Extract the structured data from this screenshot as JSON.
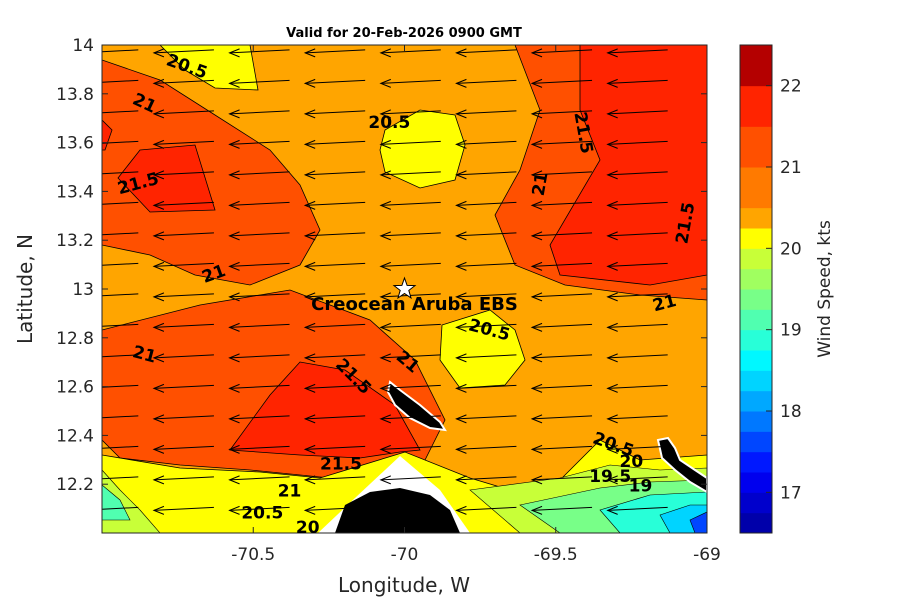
{
  "chart_data": {
    "type": "heatmap",
    "title": "Valid for 20-Feb-2026 0900 GMT",
    "xlabel": "Longitude, W",
    "ylabel": "Latitude, N",
    "xlim": [
      -71.0,
      -69.0
    ],
    "ylim": [
      12.0,
      14.0
    ],
    "x_ticks": [
      "-70.5",
      "-70",
      "-69.5",
      "-69"
    ],
    "x_tick_values": [
      -70.5,
      -70.0,
      -69.5,
      -69.0
    ],
    "y_ticks": [
      "12.2",
      "12.4",
      "12.6",
      "12.8",
      "13",
      "13.2",
      "13.4",
      "13.6",
      "13.8",
      "14"
    ],
    "y_tick_values": [
      12.2,
      12.4,
      12.6,
      12.8,
      13.0,
      13.2,
      13.4,
      13.6,
      13.8,
      14.0
    ],
    "colorbar": {
      "label": "Wind Speed, kts",
      "range": [
        16.5,
        22.5
      ],
      "tick_labels": [
        "17",
        "18",
        "19",
        "20",
        "21",
        "22"
      ],
      "tick_values": [
        17,
        18,
        19,
        20,
        21,
        22
      ],
      "levels": [
        16.5,
        16.75,
        17,
        17.25,
        17.5,
        17.75,
        18,
        18.25,
        18.5,
        18.75,
        19,
        19.25,
        19.5,
        19.75,
        20,
        20.25,
        20.5,
        21,
        21.5,
        22,
        22.5
      ],
      "colors": [
        "#0000aa",
        "#0000cc",
        "#0000ee",
        "#0018ff",
        "#0046ff",
        "#0078ff",
        "#00a8ff",
        "#00d4ff",
        "#00f8ff",
        "#28ffd8",
        "#50ffb0",
        "#78ff88",
        "#a0ff60",
        "#c8ff38",
        "#ffff00",
        "#ffa500",
        "#ff7a00",
        "#ff5000",
        "#ff2400",
        "#b40000"
      ]
    },
    "contour_labels": [
      {
        "text": "20.5",
        "lon": -70.72,
        "lat": 13.91,
        "rotate": 20
      },
      {
        "text": "21",
        "lon": -70.86,
        "lat": 13.76,
        "rotate": 25
      },
      {
        "text": "21.5",
        "lon": -70.88,
        "lat": 13.43,
        "rotate": -15
      },
      {
        "text": "21",
        "lon": -70.63,
        "lat": 13.06,
        "rotate": -20
      },
      {
        "text": "20.5",
        "lon": -70.05,
        "lat": 13.68,
        "rotate": 0
      },
      {
        "text": "21",
        "lon": -69.55,
        "lat": 13.43,
        "rotate": -80
      },
      {
        "text": "21.5",
        "lon": -69.41,
        "lat": 13.64,
        "rotate": 80
      },
      {
        "text": "21.5",
        "lon": -69.07,
        "lat": 13.27,
        "rotate": -80
      },
      {
        "text": "21",
        "lon": -69.14,
        "lat": 12.94,
        "rotate": -15
      },
      {
        "text": "20.5",
        "lon": -69.72,
        "lat": 12.83,
        "rotate": 15
      },
      {
        "text": "21",
        "lon": -70.86,
        "lat": 12.73,
        "rotate": 15
      },
      {
        "text": "21.5",
        "lon": -70.17,
        "lat": 12.64,
        "rotate": 45
      },
      {
        "text": "21",
        "lon": -69.99,
        "lat": 12.7,
        "rotate": 40
      },
      {
        "text": "21.5",
        "lon": -70.21,
        "lat": 12.28,
        "rotate": 0
      },
      {
        "text": "21",
        "lon": -70.38,
        "lat": 12.17,
        "rotate": 0
      },
      {
        "text": "20.5",
        "lon": -70.47,
        "lat": 12.08,
        "rotate": 0
      },
      {
        "text": "20",
        "lon": -70.32,
        "lat": 12.02,
        "rotate": 0
      },
      {
        "text": "20.5",
        "lon": -69.31,
        "lat": 12.36,
        "rotate": 20
      },
      {
        "text": "20",
        "lon": -69.25,
        "lat": 12.29,
        "rotate": 0
      },
      {
        "text": "19.5",
        "lon": -69.32,
        "lat": 12.23,
        "rotate": 0
      },
      {
        "text": "19",
        "lon": -69.22,
        "lat": 12.19,
        "rotate": 0
      }
    ],
    "station": {
      "name": "Creocean Aruba EBS",
      "lon": -70.0,
      "lat": 13.0
    },
    "wind": {
      "direction": "easterly",
      "approx_speed_kts": 21
    },
    "grid": false,
    "legend": "none"
  }
}
